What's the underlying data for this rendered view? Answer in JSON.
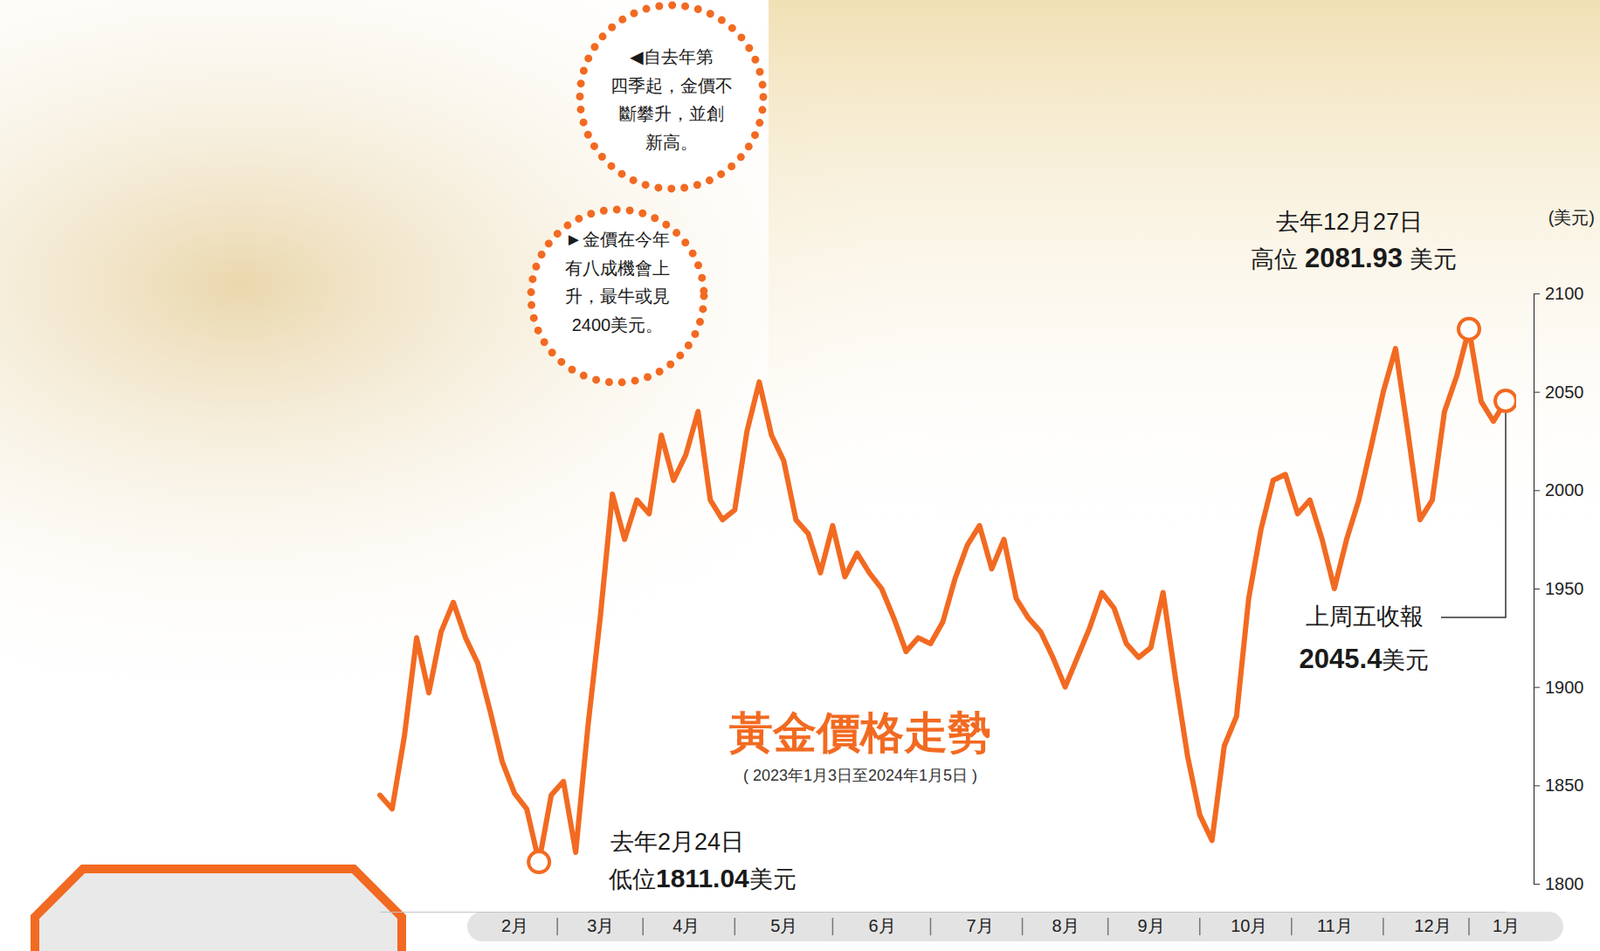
{
  "chart_data": {
    "type": "line",
    "title": "黃金價格走勢",
    "subtitle": "( 2023年1月3日至2024年1月5日 )",
    "y_label": "(美元)",
    "categories": [
      null,
      null,
      null,
      null,
      null,
      null,
      null,
      null,
      null,
      null,
      null,
      "2月",
      null,
      null,
      null,
      null,
      null,
      null,
      "3月",
      null,
      null,
      null,
      null,
      null,
      null,
      "4月",
      null,
      null,
      null,
      null,
      null,
      null,
      null,
      "5月",
      null,
      null,
      null,
      null,
      null,
      null,
      null,
      "6月",
      null,
      null,
      null,
      null,
      null,
      null,
      null,
      "7月",
      null,
      null,
      null,
      null,
      null,
      null,
      "8月",
      null,
      null,
      null,
      null,
      null,
      null,
      "9月",
      null,
      null,
      null,
      null,
      null,
      null,
      null,
      "10月",
      null,
      null,
      null,
      null,
      null,
      null,
      "11月",
      null,
      null,
      null,
      null,
      null,
      null,
      null,
      "12月",
      null,
      null,
      null,
      null,
      null,
      "1月"
    ],
    "series": [
      {
        "color": "#f26a21",
        "values": [
          1845,
          1838,
          1875,
          1925,
          1897,
          1928,
          1943,
          1925,
          1912,
          1888,
          1862,
          1846,
          1838,
          1811.04,
          1845,
          1852,
          1816,
          1880,
          1935,
          1998,
          1975,
          1995,
          1988,
          2028,
          2005,
          2018,
          2040,
          1995,
          1985,
          1990,
          2030,
          2055,
          2028,
          2015,
          1985,
          1978,
          1958,
          1982,
          1956,
          1968,
          1958,
          1950,
          1935,
          1918,
          1925,
          1922,
          1933,
          1955,
          1972,
          1982,
          1960,
          1975,
          1945,
          1935,
          1928,
          1915,
          1900,
          1915,
          1930,
          1948,
          1940,
          1922,
          1915,
          1920,
          1948,
          1905,
          1865,
          1835,
          1822,
          1870,
          1885,
          1945,
          1980,
          2005,
          2008,
          1988,
          1995,
          1975,
          1950,
          1975,
          1995,
          2022,
          2050,
          2072,
          2030,
          1985,
          1995,
          2040,
          2058,
          2081.93,
          2045,
          2035,
          2045.4
        ]
      }
    ],
    "ylim": [
      1800,
      2100
    ],
    "yticks": [
      1800,
      1850,
      1900,
      1950,
      2000,
      2050,
      2100
    ],
    "grid": false,
    "annotations": [
      {
        "title": "去年12月27日",
        "prefix": "高位",
        "unit": "美元"
      },
      {
        "title": "去年2月24日",
        "prefix": "低位",
        "unit": "美元"
      },
      {
        "title": "上周五收報",
        "unit": "美元"
      }
    ],
    "callouts": [
      {
        "lines": [
          "◀自去年第",
          "四季起，金價不",
          "斷攀升，並創",
          "新高。"
        ]
      },
      {
        "lines": [
          "►金價在今年",
          "有八成機會上",
          "升，最牛或見",
          "2400美元。"
        ]
      }
    ]
  }
}
